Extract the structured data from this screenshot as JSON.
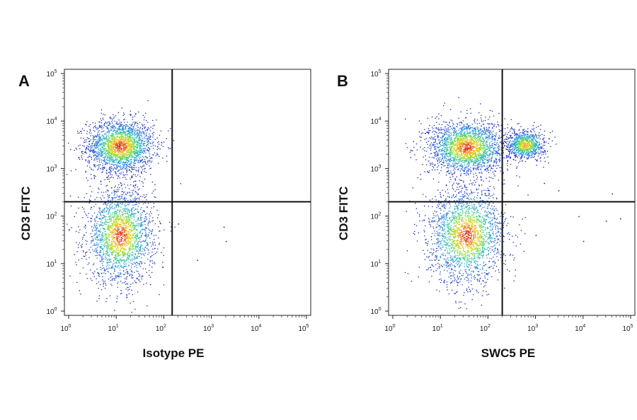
{
  "chart_data": [
    {
      "type": "scatter",
      "panel_label": "A",
      "xlabel": "Isotype PE",
      "ylabel": "CD3 FITC",
      "xscale": "log",
      "yscale": "log",
      "xlim": [
        1,
        100000
      ],
      "ylim": [
        1,
        100000
      ],
      "x_ticks": [
        1,
        10,
        100,
        1000,
        10000,
        100000
      ],
      "y_ticks": [
        1,
        10,
        100,
        1000,
        10000,
        100000
      ],
      "tick_labels": [
        "10^0",
        "10^1",
        "10^2",
        "10^3",
        "10^4",
        "10^5"
      ],
      "quadrant_gates": {
        "x": 150,
        "y": 200
      },
      "colormap": "density (blue-cyan-green-yellow-red)",
      "populations": [
        {
          "name": "CD3+",
          "center_x": 12,
          "center_y": 3000,
          "spread_x_log": 0.35,
          "spread_y_log": 0.28,
          "density": "high"
        },
        {
          "name": "CD3-",
          "center_x": 12,
          "center_y": 40,
          "spread_x_log": 0.35,
          "spread_y_log": 0.5,
          "density": "high"
        }
      ],
      "outliers": [
        [
          200,
          70
        ],
        [
          1800,
          60
        ],
        [
          2000,
          30
        ],
        [
          500,
          12
        ]
      ]
    },
    {
      "type": "scatter",
      "panel_label": "B",
      "xlabel": "SWC5 PE",
      "ylabel": "CD3 FITC",
      "xscale": "log",
      "yscale": "log",
      "xlim": [
        1,
        100000
      ],
      "ylim": [
        1,
        100000
      ],
      "x_ticks": [
        1,
        10,
        100,
        1000,
        10000,
        100000
      ],
      "y_ticks": [
        1,
        10,
        100,
        1000,
        10000,
        100000
      ],
      "tick_labels": [
        "10^0",
        "10^1",
        "10^2",
        "10^3",
        "10^4",
        "10^5"
      ],
      "quadrant_gates": {
        "x": 200,
        "y": 200
      },
      "colormap": "density (blue-cyan-green-yellow-red)",
      "populations": [
        {
          "name": "CD3+ SWC5-",
          "center_x": 35,
          "center_y": 2800,
          "spread_x_log": 0.4,
          "spread_y_log": 0.28,
          "density": "high"
        },
        {
          "name": "CD3+ SWC5+",
          "center_x": 600,
          "center_y": 3200,
          "spread_x_log": 0.2,
          "spread_y_log": 0.15,
          "density": "medium"
        },
        {
          "name": "CD3-",
          "center_x": 35,
          "center_y": 40,
          "spread_x_log": 0.4,
          "spread_y_log": 0.5,
          "density": "high"
        }
      ],
      "outliers": [
        [
          1500,
          500
        ],
        [
          3000,
          350
        ],
        [
          40000,
          300
        ],
        [
          8000,
          100
        ],
        [
          30000,
          80
        ],
        [
          60000,
          90
        ],
        [
          1000,
          40
        ],
        [
          10000,
          30
        ]
      ]
    }
  ]
}
